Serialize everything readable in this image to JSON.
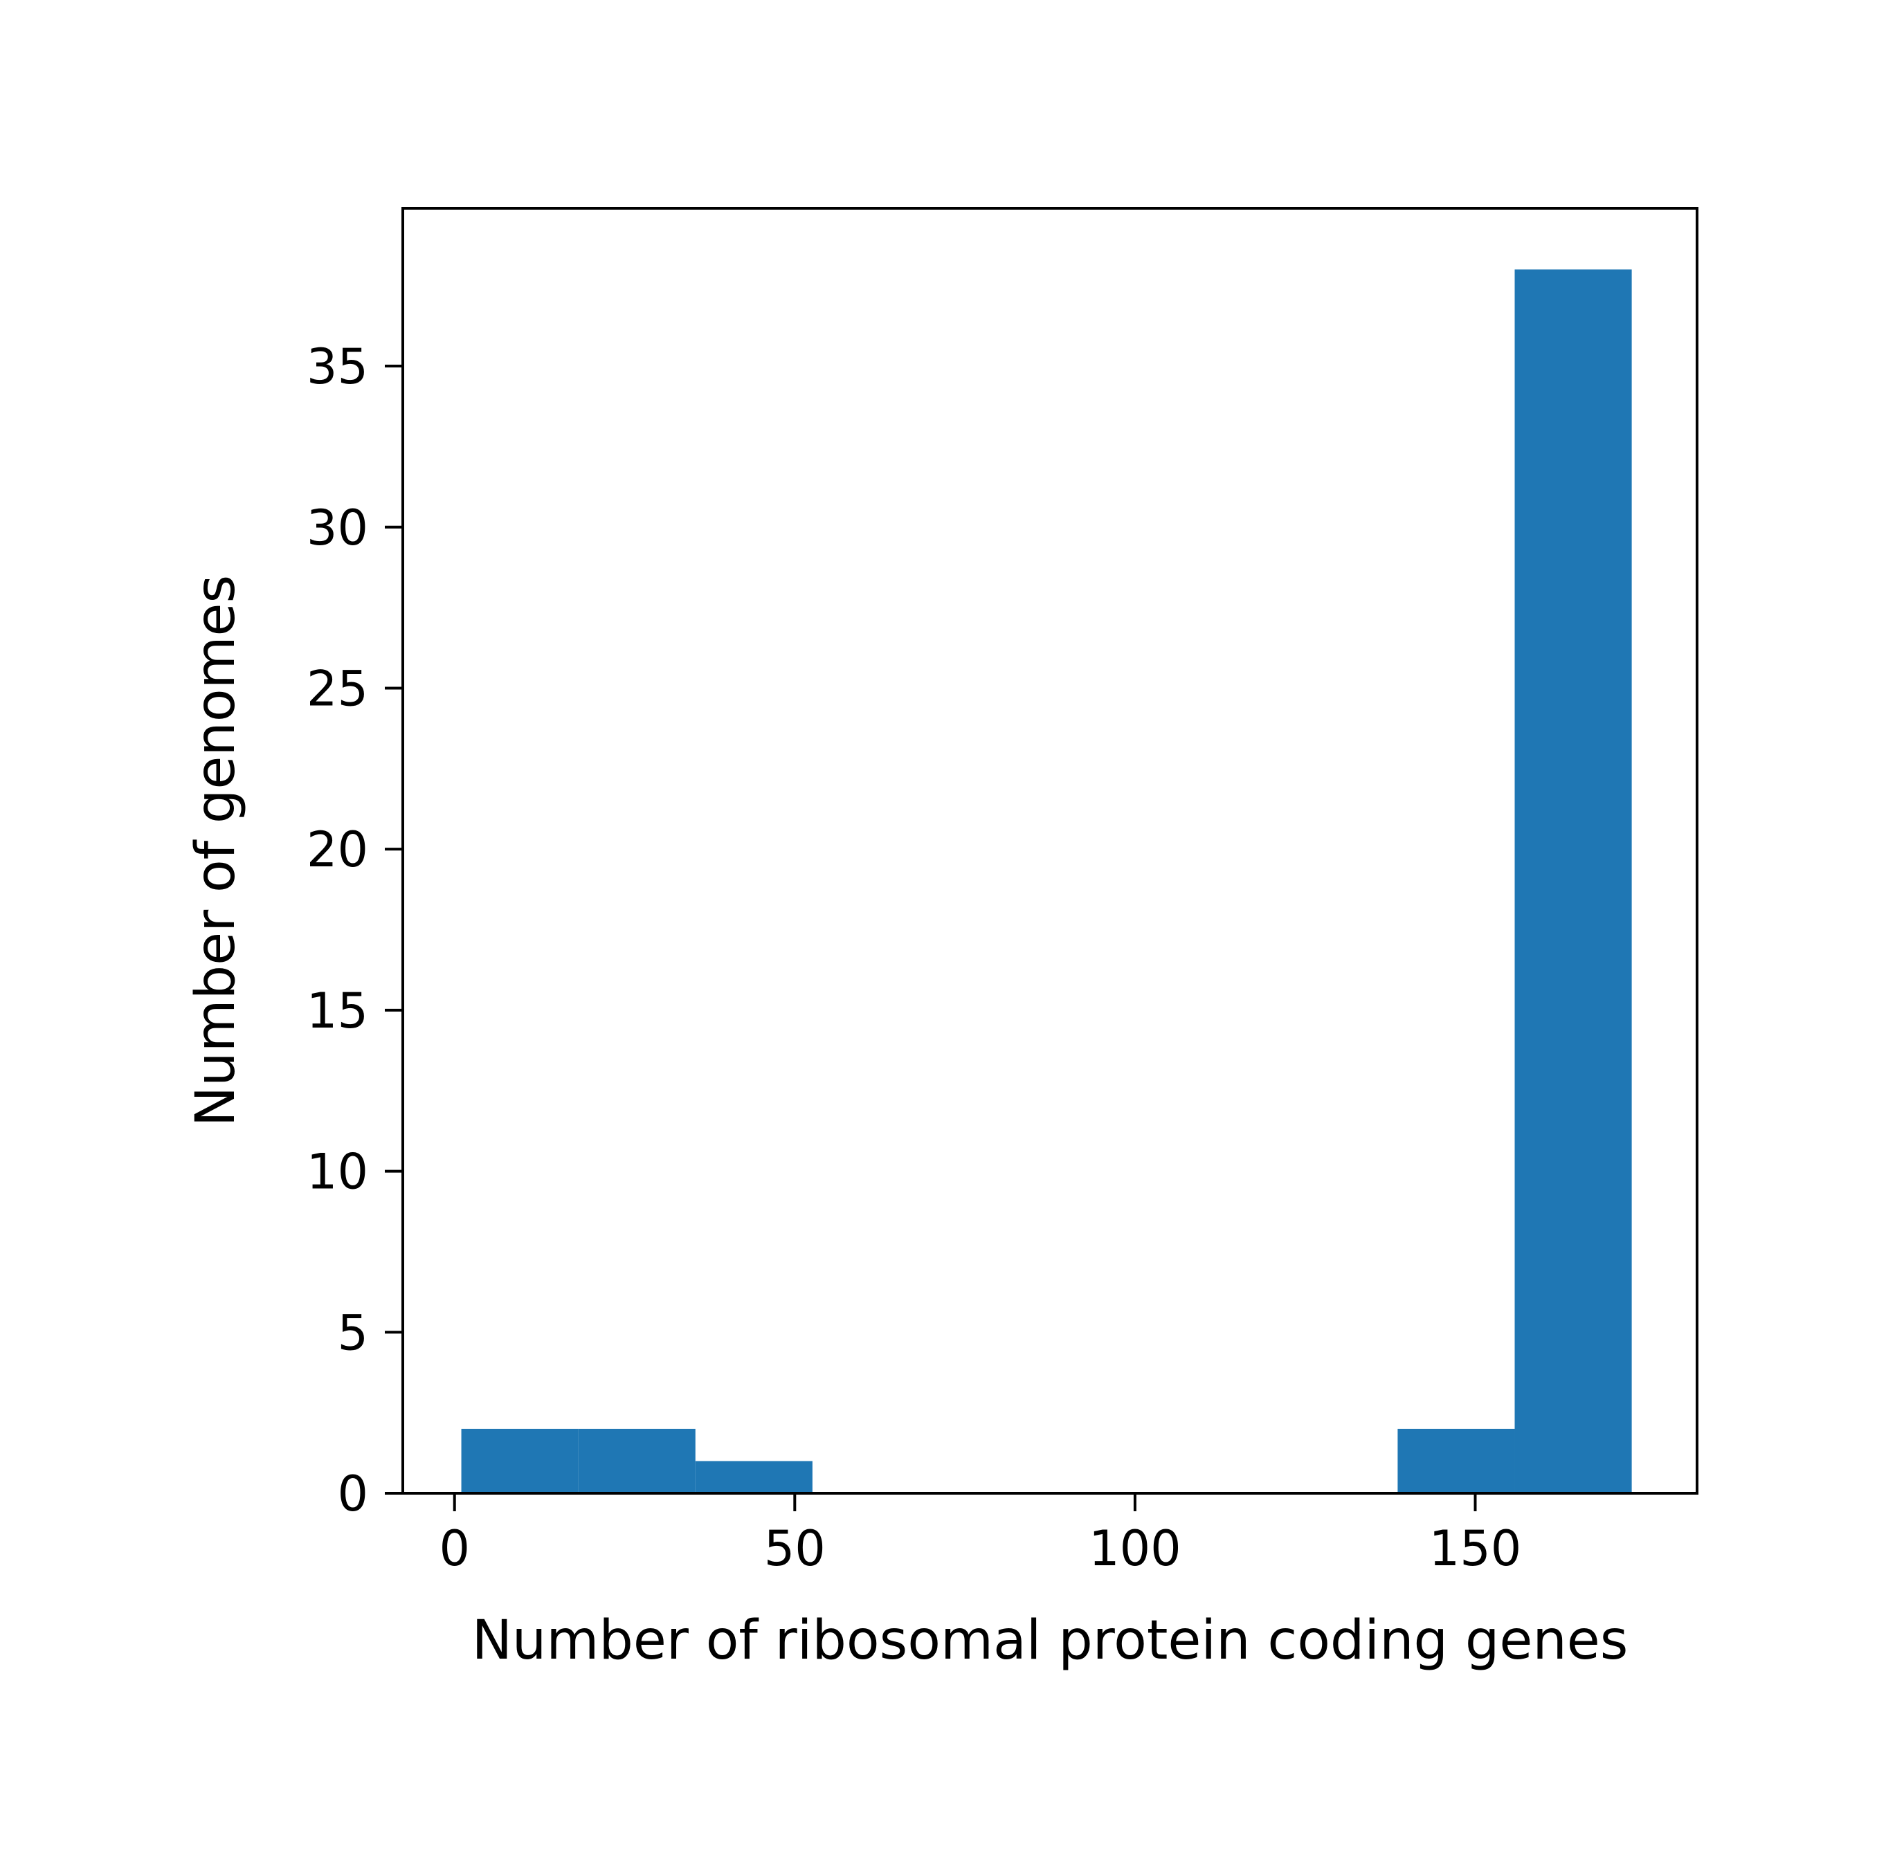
{
  "chart_data": {
    "type": "bar",
    "xlabel": "Number of ribosomal protein coding genes",
    "ylabel": "Number of genomes",
    "xlim": [
      -7.6,
      182.6
    ],
    "ylim": [
      0,
      39.9
    ],
    "xticks": [
      0,
      50,
      100,
      150
    ],
    "yticks": [
      0,
      5,
      10,
      15,
      20,
      25,
      30,
      35
    ],
    "bins": [
      {
        "x0": 1.0,
        "x1": 18.2,
        "count": 2
      },
      {
        "x0": 18.2,
        "x1": 35.4,
        "count": 2
      },
      {
        "x0": 35.4,
        "x1": 52.6,
        "count": 1
      },
      {
        "x0": 52.6,
        "x1": 69.8,
        "count": 0
      },
      {
        "x0": 69.8,
        "x1": 87.0,
        "count": 0
      },
      {
        "x0": 87.0,
        "x1": 104.2,
        "count": 0
      },
      {
        "x0": 104.2,
        "x1": 121.4,
        "count": 0
      },
      {
        "x0": 121.4,
        "x1": 138.6,
        "count": 0
      },
      {
        "x0": 138.6,
        "x1": 155.8,
        "count": 2
      },
      {
        "x0": 155.8,
        "x1": 173.0,
        "count": 38
      }
    ],
    "bar_color": "#1f77b4",
    "grid": false,
    "legend": "none"
  }
}
